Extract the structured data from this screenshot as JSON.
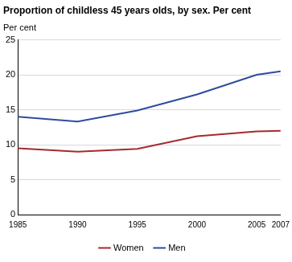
{
  "chart_data": {
    "type": "line",
    "title": "Proportion of childless 45 years olds, by sex. Per cent",
    "ylabel": "Per cent",
    "x": [
      1985,
      1990,
      1995,
      2000,
      2005,
      2007
    ],
    "series": [
      {
        "name": "Women",
        "color": "#a52a2f",
        "values": [
          9.5,
          9.0,
          9.4,
          11.2,
          11.9,
          12.0
        ]
      },
      {
        "name": "Men",
        "color": "#2e4c9e",
        "values": [
          14.0,
          13.3,
          14.9,
          17.2,
          20.0,
          20.5
        ]
      }
    ],
    "xlim": [
      1985,
      2007
    ],
    "xticks": [
      1985,
      1990,
      1995,
      2000,
      2005,
      2007
    ],
    "ylim": [
      0,
      25
    ],
    "yticks": [
      0,
      5,
      10,
      15,
      20,
      25
    ],
    "grid": true,
    "legend": "bottom"
  }
}
